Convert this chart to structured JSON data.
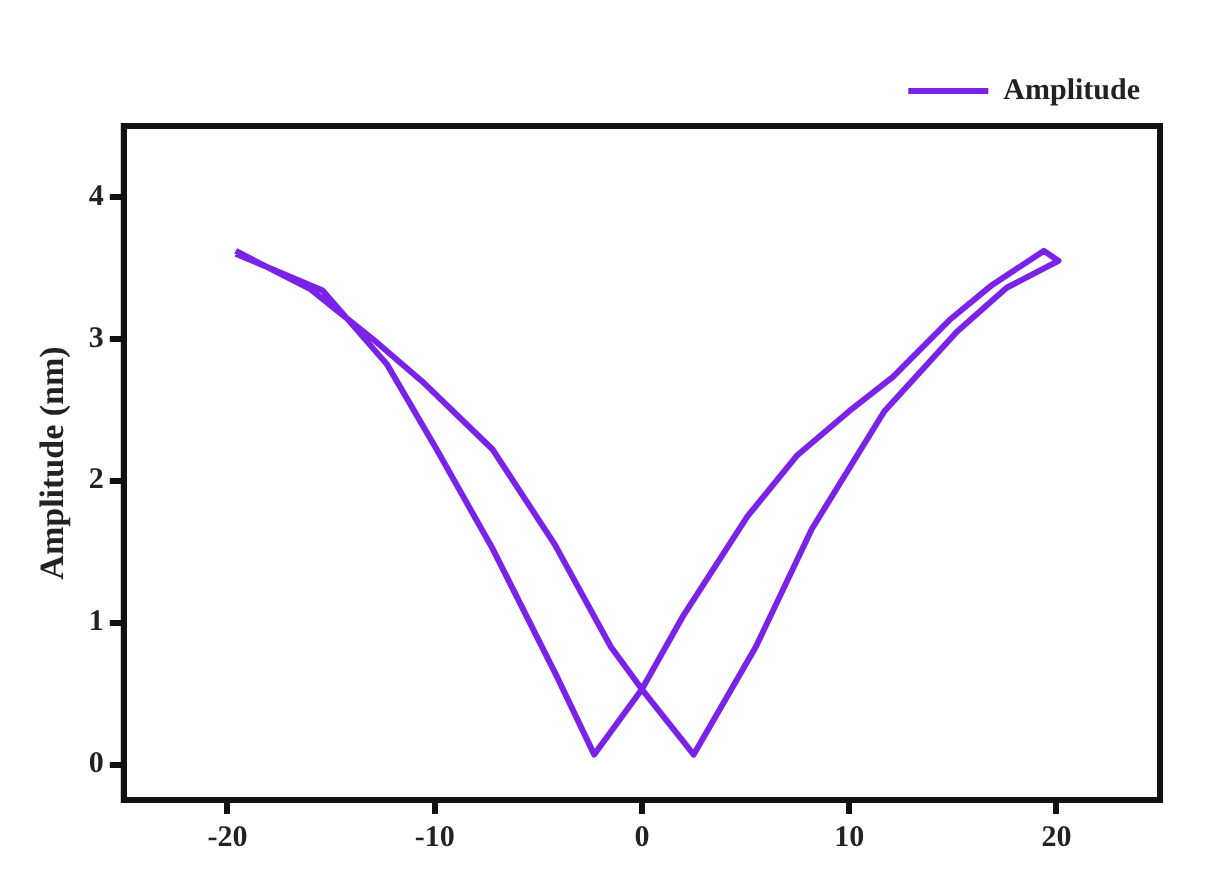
{
  "chart_data": {
    "type": "line",
    "ylabel": "Amplitude (nm)",
    "xlim": [
      -25,
      25
    ],
    "xticks": [
      -20,
      -10,
      0,
      10,
      20
    ],
    "ylim": [
      -0.25,
      4.5
    ],
    "yticks": [
      0,
      1,
      2,
      3,
      4
    ],
    "grid": false,
    "legend": "top right",
    "marker": "none",
    "line_style": "solid",
    "series": [
      {
        "name": "Amplitude",
        "color": "#7b22e8",
        "x": [
          -19.6,
          -15.4,
          -12.3,
          -9.9,
          -7.2,
          -4.1,
          -2.3,
          0,
          2.0,
          5.1,
          7.5,
          10,
          12.1,
          14.9,
          16.9,
          19.4,
          20.1,
          17.6,
          15.2,
          11.7,
          8.2,
          5.5,
          2.5,
          0,
          -1.5,
          -4.2,
          -7.2,
          -10.6,
          -13,
          -16,
          -19.6
        ],
        "values": [
          3.6,
          3.34,
          2.82,
          2.22,
          1.52,
          0.62,
          0.07,
          0.53,
          1.05,
          1.75,
          2.18,
          2.49,
          2.73,
          3.14,
          3.38,
          3.62,
          3.55,
          3.36,
          3.05,
          2.49,
          1.66,
          0.83,
          0.07,
          0.53,
          0.83,
          1.55,
          2.22,
          2.7,
          3.0,
          3.35,
          3.62
        ]
      }
    ]
  }
}
